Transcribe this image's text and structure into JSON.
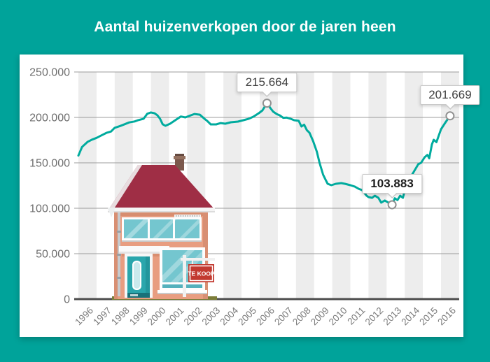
{
  "header": {
    "title": "Aantal huizenverkopen door de jaren heen"
  },
  "house": {
    "sign_label": "TE KOOP"
  },
  "colors": {
    "background": "#00a39a",
    "card": "#ffffff",
    "line": "#00ab9e",
    "band": "#ededed",
    "gridline": "#9c9c9c",
    "axis": "#4c4c4c",
    "y_label": "#6e6e6e",
    "x_label": "#7a7a7a",
    "marker_stroke": "#909090",
    "tooltip_text": "#3f3f3f",
    "house_roof": "#9f2e45",
    "house_wall": "#e89d80",
    "house_glass": "#74c6cf",
    "house_door": "#2aa6ac",
    "sign_red": "#c23a30",
    "ground": "#7c7d39"
  },
  "chart_data": {
    "type": "line",
    "title": "Aantal huizenverkopen door de jaren heen",
    "xlabel": "",
    "ylabel": "",
    "x_start": 1996,
    "categories": [
      "1996",
      "1997",
      "1998",
      "1999",
      "2000",
      "2001",
      "2002",
      "2003",
      "2004",
      "2005",
      "2006",
      "2007",
      "2008",
      "2009",
      "2010",
      "2011",
      "2012",
      "2013",
      "2014",
      "2015",
      "2016"
    ],
    "y_tick_labels": [
      "0",
      "50.000",
      "100.000",
      "150.000",
      "200.000",
      "250.000"
    ],
    "ylim": [
      0,
      250000
    ],
    "grid": "horizontal",
    "band_shading": "alternating-year-vertical-bands",
    "legend": "none",
    "series": [
      {
        "name": "huizenverkopen",
        "points": [
          [
            1996.0,
            158000
          ],
          [
            1996.2,
            167500
          ],
          [
            1996.5,
            173000
          ],
          [
            1996.75,
            175500
          ],
          [
            1997.0,
            177500
          ],
          [
            1997.3,
            180500
          ],
          [
            1997.55,
            183000
          ],
          [
            1997.8,
            184500
          ],
          [
            1998.0,
            188500
          ],
          [
            1998.3,
            190500
          ],
          [
            1998.55,
            192500
          ],
          [
            1998.8,
            194500
          ],
          [
            1999.1,
            195500
          ],
          [
            1999.3,
            197000
          ],
          [
            1999.6,
            198500
          ],
          [
            1999.8,
            204000
          ],
          [
            2000.0,
            205500
          ],
          [
            2000.2,
            204500
          ],
          [
            2000.35,
            202500
          ],
          [
            2000.5,
            198500
          ],
          [
            2000.65,
            192500
          ],
          [
            2000.8,
            190800
          ],
          [
            2001.05,
            193000
          ],
          [
            2001.35,
            197000
          ],
          [
            2001.65,
            201000
          ],
          [
            2001.9,
            200000
          ],
          [
            2002.2,
            202300
          ],
          [
            2002.4,
            203800
          ],
          [
            2002.7,
            203000
          ],
          [
            2002.95,
            198500
          ],
          [
            2003.1,
            196200
          ],
          [
            2003.3,
            192300
          ],
          [
            2003.6,
            192300
          ],
          [
            2003.85,
            193800
          ],
          [
            2004.1,
            193100
          ],
          [
            2004.4,
            194600
          ],
          [
            2004.8,
            195400
          ],
          [
            2005.1,
            196900
          ],
          [
            2005.4,
            198500
          ],
          [
            2005.65,
            200800
          ],
          [
            2005.95,
            204600
          ],
          [
            2006.15,
            207700
          ],
          [
            2006.4,
            215664
          ],
          [
            2006.6,
            210000
          ],
          [
            2006.75,
            206200
          ],
          [
            2006.95,
            203500
          ],
          [
            2007.1,
            202300
          ],
          [
            2007.3,
            199500
          ],
          [
            2007.5,
            199800
          ],
          [
            2007.7,
            198500
          ],
          [
            2007.9,
            196900
          ],
          [
            2008.15,
            196200
          ],
          [
            2008.3,
            190000
          ],
          [
            2008.45,
            192000
          ],
          [
            2008.6,
            186000
          ],
          [
            2008.75,
            183000
          ],
          [
            2008.95,
            173800
          ],
          [
            2009.15,
            162300
          ],
          [
            2009.3,
            150000
          ],
          [
            2009.5,
            136900
          ],
          [
            2009.65,
            130800
          ],
          [
            2009.75,
            126900
          ],
          [
            2009.95,
            125400
          ],
          [
            2010.2,
            126900
          ],
          [
            2010.5,
            127700
          ],
          [
            2010.7,
            126900
          ],
          [
            2011.0,
            125400
          ],
          [
            2011.25,
            123800
          ],
          [
            2011.45,
            121500
          ],
          [
            2011.65,
            120000
          ],
          [
            2011.9,
            113800
          ],
          [
            2012.0,
            112300
          ],
          [
            2012.2,
            111500
          ],
          [
            2012.35,
            113800
          ],
          [
            2012.55,
            111500
          ],
          [
            2012.7,
            106200
          ],
          [
            2012.9,
            108500
          ],
          [
            2013.1,
            106200
          ],
          [
            2013.3,
            103883
          ],
          [
            2013.45,
            111000
          ],
          [
            2013.6,
            109000
          ],
          [
            2013.75,
            113800
          ],
          [
            2013.9,
            111500
          ],
          [
            2014.1,
            128000
          ],
          [
            2014.45,
            138500
          ],
          [
            2014.75,
            148500
          ],
          [
            2014.9,
            150000
          ],
          [
            2015.1,
            156200
          ],
          [
            2015.25,
            158700
          ],
          [
            2015.35,
            155000
          ],
          [
            2015.5,
            170200
          ],
          [
            2015.6,
            175400
          ],
          [
            2015.75,
            172800
          ],
          [
            2016.0,
            186900
          ],
          [
            2016.25,
            194600
          ],
          [
            2016.5,
            201669
          ]
        ]
      }
    ],
    "annotations": [
      {
        "label": "215.664",
        "year": 2006.4,
        "value": 215664,
        "bold": false
      },
      {
        "label": "103.883",
        "year": 2013.3,
        "value": 103883,
        "bold": true
      },
      {
        "label": "201.669",
        "year": 2016.5,
        "value": 201669,
        "bold": false
      }
    ]
  }
}
